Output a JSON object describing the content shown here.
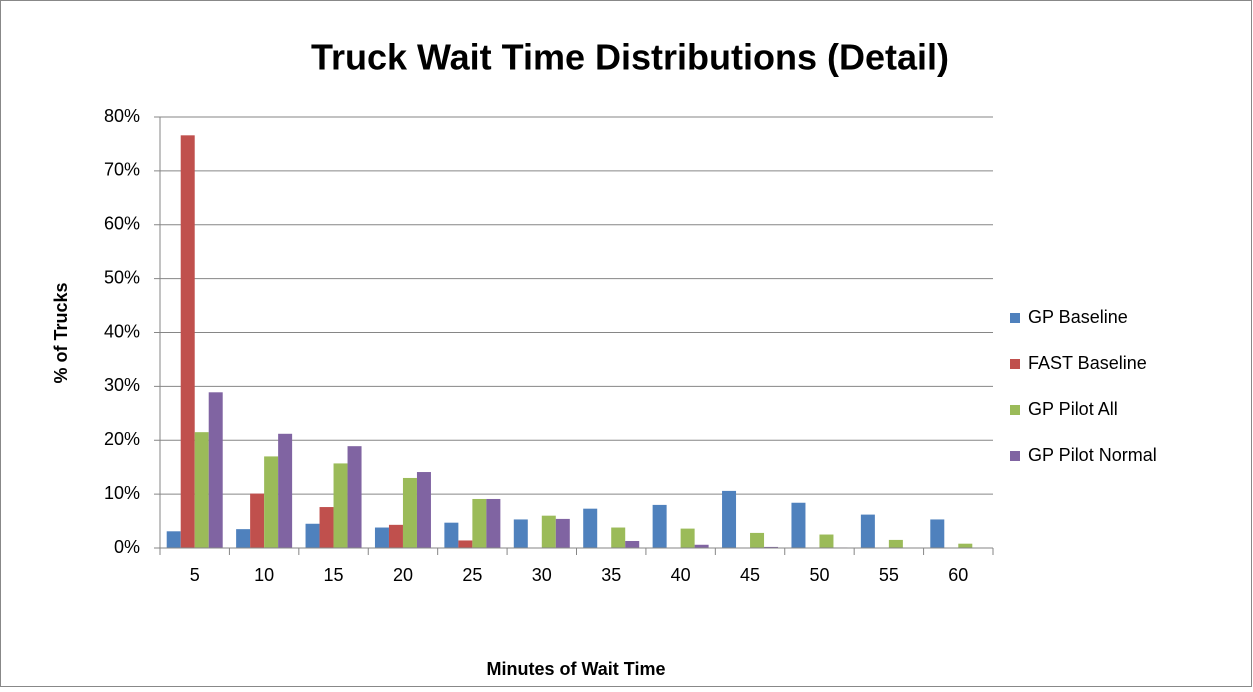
{
  "chart_data": {
    "type": "bar",
    "title": "Truck Wait Time Distributions (Detail)",
    "x_label": "Minutes of Wait Time",
    "y_label": "% of Trucks",
    "categories": [
      5,
      10,
      15,
      20,
      25,
      30,
      35,
      40,
      45,
      50,
      55,
      60
    ],
    "series": [
      {
        "name": "GP Baseline",
        "color": "#4f81bd",
        "values": [
          3.1,
          3.5,
          4.5,
          3.8,
          4.7,
          5.3,
          7.3,
          8.0,
          10.6,
          8.4,
          6.2,
          5.3
        ]
      },
      {
        "name": "FAST Baseline",
        "color": "#c0504d",
        "values": [
          76.6,
          10.1,
          7.6,
          4.3,
          1.4,
          0,
          0,
          0,
          0,
          0,
          0,
          0
        ]
      },
      {
        "name": "GP Pilot All",
        "color": "#9bbb59",
        "values": [
          21.5,
          17.0,
          15.7,
          13.0,
          9.1,
          6.0,
          3.8,
          3.6,
          2.8,
          2.5,
          1.5,
          0.8
        ]
      },
      {
        "name": "GP Pilot Normal",
        "color": "#8064a2",
        "values": [
          28.9,
          21.2,
          18.9,
          14.1,
          9.1,
          5.4,
          1.3,
          0.6,
          0.2,
          0.1,
          0,
          0
        ]
      }
    ],
    "ylim": [
      0,
      80
    ],
    "yticks": [
      {
        "value": 0,
        "label": "0%"
      },
      {
        "value": 10,
        "label": "10%"
      },
      {
        "value": 20,
        "label": "20%"
      },
      {
        "value": 30,
        "label": "30%"
      },
      {
        "value": 40,
        "label": "40%"
      },
      {
        "value": 50,
        "label": "50%"
      },
      {
        "value": 60,
        "label": "60%"
      },
      {
        "value": 70,
        "label": "70%"
      },
      {
        "value": 80,
        "label": "80%"
      }
    ],
    "grid": true,
    "legend": "right"
  }
}
